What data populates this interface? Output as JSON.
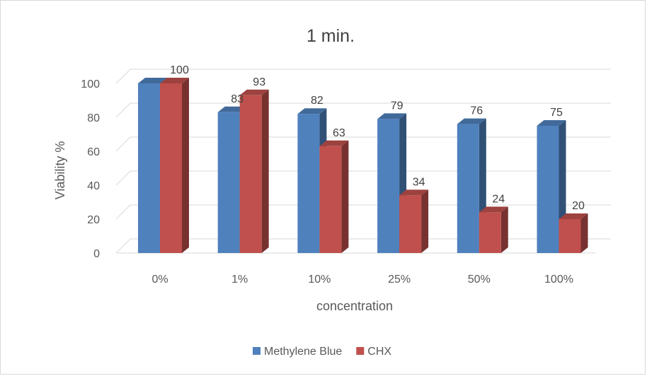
{
  "chart_data": {
    "type": "bar",
    "title": "1 min.",
    "xlabel": "concentration",
    "ylabel": "Viability %",
    "categories": [
      "0%",
      "1%",
      "10%",
      "25%",
      "50%",
      "100%"
    ],
    "series": [
      {
        "name": "Methylene Blue",
        "values": [
          100,
          83,
          82,
          79,
          76,
          75
        ],
        "color": "#4f81bd"
      },
      {
        "name": "CHX",
        "values": [
          100,
          93,
          63,
          34,
          24,
          20
        ],
        "color": "#c0504d"
      }
    ],
    "data_labels": [
      [
        "",
        "83",
        "82",
        "79",
        "76",
        "75"
      ],
      [
        "100",
        "93",
        "63",
        "34",
        "24",
        "20"
      ]
    ],
    "ylim": [
      0,
      100
    ],
    "yticks": [
      0,
      20,
      40,
      60,
      80,
      100
    ],
    "grid": true,
    "legend_position": "bottom",
    "style": "3d-clustered-column"
  }
}
